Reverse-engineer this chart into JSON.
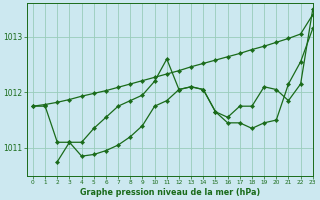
{
  "title": "Graphe pression niveau de la mer (hPa)",
  "bg_color": "#cce8f0",
  "grid_color": "#99ccbb",
  "line_color": "#1a6b1a",
  "xlim": [
    -0.5,
    23
  ],
  "ylim": [
    1010.5,
    1013.6
  ],
  "yticks": [
    1011,
    1012,
    1013
  ],
  "xticks": [
    0,
    1,
    2,
    3,
    4,
    5,
    6,
    7,
    8,
    9,
    10,
    11,
    12,
    13,
    14,
    15,
    16,
    17,
    18,
    19,
    20,
    21,
    22,
    23
  ],
  "series": [
    {
      "x": [
        0,
        1,
        2,
        3,
        4,
        5,
        6,
        7,
        8,
        9,
        10,
        11,
        12,
        13,
        14,
        15,
        16,
        17,
        18,
        19,
        20,
        21,
        22,
        23
      ],
      "y": [
        1011.75,
        1011.78,
        1011.82,
        1011.87,
        1011.93,
        1011.98,
        1012.03,
        1012.09,
        1012.15,
        1012.21,
        1012.27,
        1012.33,
        1012.39,
        1012.46,
        1012.52,
        1012.58,
        1012.64,
        1012.7,
        1012.77,
        1012.83,
        1012.9,
        1012.97,
        1013.05,
        1013.4
      ]
    },
    {
      "x": [
        2,
        3,
        4,
        5,
        6,
        7,
        8,
        9,
        10,
        11,
        12,
        13,
        14,
        15,
        16,
        17,
        18,
        19,
        20,
        21,
        22,
        23
      ],
      "y": [
        1010.75,
        1011.1,
        1011.1,
        1011.35,
        1011.55,
        1011.75,
        1011.85,
        1011.95,
        1012.2,
        1012.6,
        1012.05,
        1012.1,
        1012.05,
        1011.65,
        1011.45,
        1011.45,
        1011.35,
        1011.45,
        1011.5,
        1012.15,
        1012.55,
        1013.15
      ]
    },
    {
      "x": [
        0,
        1,
        2,
        3,
        4,
        5,
        6,
        7,
        8,
        9,
        10,
        11,
        12,
        13,
        14,
        15,
        16,
        17,
        18,
        19,
        20,
        21,
        22,
        23
      ],
      "y": [
        1011.75,
        1011.75,
        1011.1,
        1011.1,
        1010.85,
        1010.88,
        1010.95,
        1011.05,
        1011.2,
        1011.4,
        1011.75,
        1011.85,
        1012.05,
        1012.1,
        1012.05,
        1011.65,
        1011.55,
        1011.75,
        1011.75,
        1012.1,
        1012.05,
        1011.85,
        1012.15,
        1013.5
      ]
    }
  ]
}
